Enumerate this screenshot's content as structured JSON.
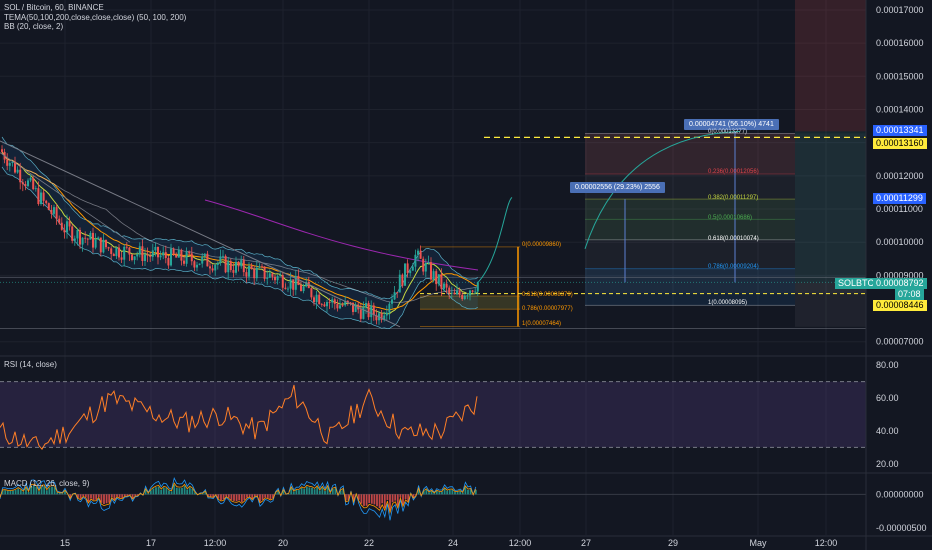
{
  "header": {
    "symbol": "SOL / Bitcoin, 60, BINANCE",
    "indicator1": "TEMA(50,100,200,close,close,close) (50, 100, 200)",
    "indicator2": "BB (20, close, 2)",
    "rsi": "RSI (14, close)",
    "macd": "MACD (12, 26, close, 9)"
  },
  "price_axis": {
    "ticks": [
      "0.00017000",
      "0.00016000",
      "0.00015000",
      "0.00014000",
      "0.00013000",
      "0.00012000",
      "0.00011000",
      "0.00010000",
      "0.00009000",
      "0.00007000"
    ]
  },
  "rsi_axis": {
    "ticks": [
      "80.00",
      "60.00",
      "40.00",
      "20.00"
    ]
  },
  "macd_axis": {
    "ticks": [
      "0.00000000",
      "-0.00000500"
    ]
  },
  "time_axis": {
    "ticks": [
      "15",
      "17",
      "12:00",
      "20",
      "22",
      "24",
      "12:00",
      "27",
      "29",
      "May",
      "12:00"
    ]
  },
  "tags": {
    "t13341": "0.00013341",
    "t13160": "0.00013160",
    "t11299": "0.00011299",
    "symbol": "SOLBTC",
    "price": "0.00008792",
    "countdown": "07:08",
    "t08446": "0.00008446"
  },
  "measures": {
    "m1": "0.00004741 (56.10%) 4741",
    "m2": "0.00002556 (29.23%) 2556"
  },
  "fib_big": [
    {
      "text": "0(0.00013277)",
      "color": "#d1d4dc"
    },
    {
      "text": "0.236(0.00012056)",
      "color": "#e0434a"
    },
    {
      "text": "0.382(0.00011297)",
      "color": "#c6d840"
    },
    {
      "text": "0.5(0.00010686)",
      "color": "#4caf50"
    },
    {
      "text": "0.618(0.00010074)",
      "color": "#ffffff"
    },
    {
      "text": "0.786(0.00009204)",
      "color": "#2196f3"
    },
    {
      "text": "1(0.00008095)",
      "color": "#ffffff"
    }
  ],
  "fib_small": [
    {
      "text": "0(0.00009860)",
      "color": "#ff9800"
    },
    {
      "text": "0.618(0.00008379)",
      "color": "#ff9800"
    },
    {
      "text": "0.786(0.00007977)",
      "color": "#ff9800"
    },
    {
      "text": "1(0.00007464)",
      "color": "#ff9800"
    }
  ],
  "chart_data": {
    "type": "line",
    "title": "SOL / Bitcoin, 60, BINANCE",
    "price_series": {
      "name": "SOLBTC",
      "x": [
        "14",
        "15",
        "16",
        "17",
        "18",
        "19",
        "20",
        "21",
        "22",
        "23",
        "24"
      ],
      "values": [
        0.000128,
        0.000104,
        9.8e-05,
        9.6e-05,
        9.4e-05,
        8.9e-05,
        8.2e-05,
        7.8e-05,
        9.6e-05,
        8.3e-05,
        8.79e-05
      ]
    },
    "last_price": 8.792e-05,
    "ylim": [
      6.6e-05,
      0.000173
    ],
    "rsi": {
      "values": [
        40,
        30,
        42,
        60,
        52,
        45,
        50,
        40,
        62,
        35,
        60,
        38,
        40,
        58
      ],
      "ylim": [
        15,
        85
      ],
      "bands": [
        70,
        30
      ]
    },
    "macd": {
      "ylim": [
        -6e-06,
        3e-06
      ]
    },
    "colors": {
      "background": "#131722",
      "bull": "#26a69a",
      "bear": "#ef5350",
      "rsi": "#ff7f27",
      "tag_yellow": "#ffeb3b",
      "tag_blue": "#2962ff",
      "tag_green": "#26a69a"
    }
  }
}
